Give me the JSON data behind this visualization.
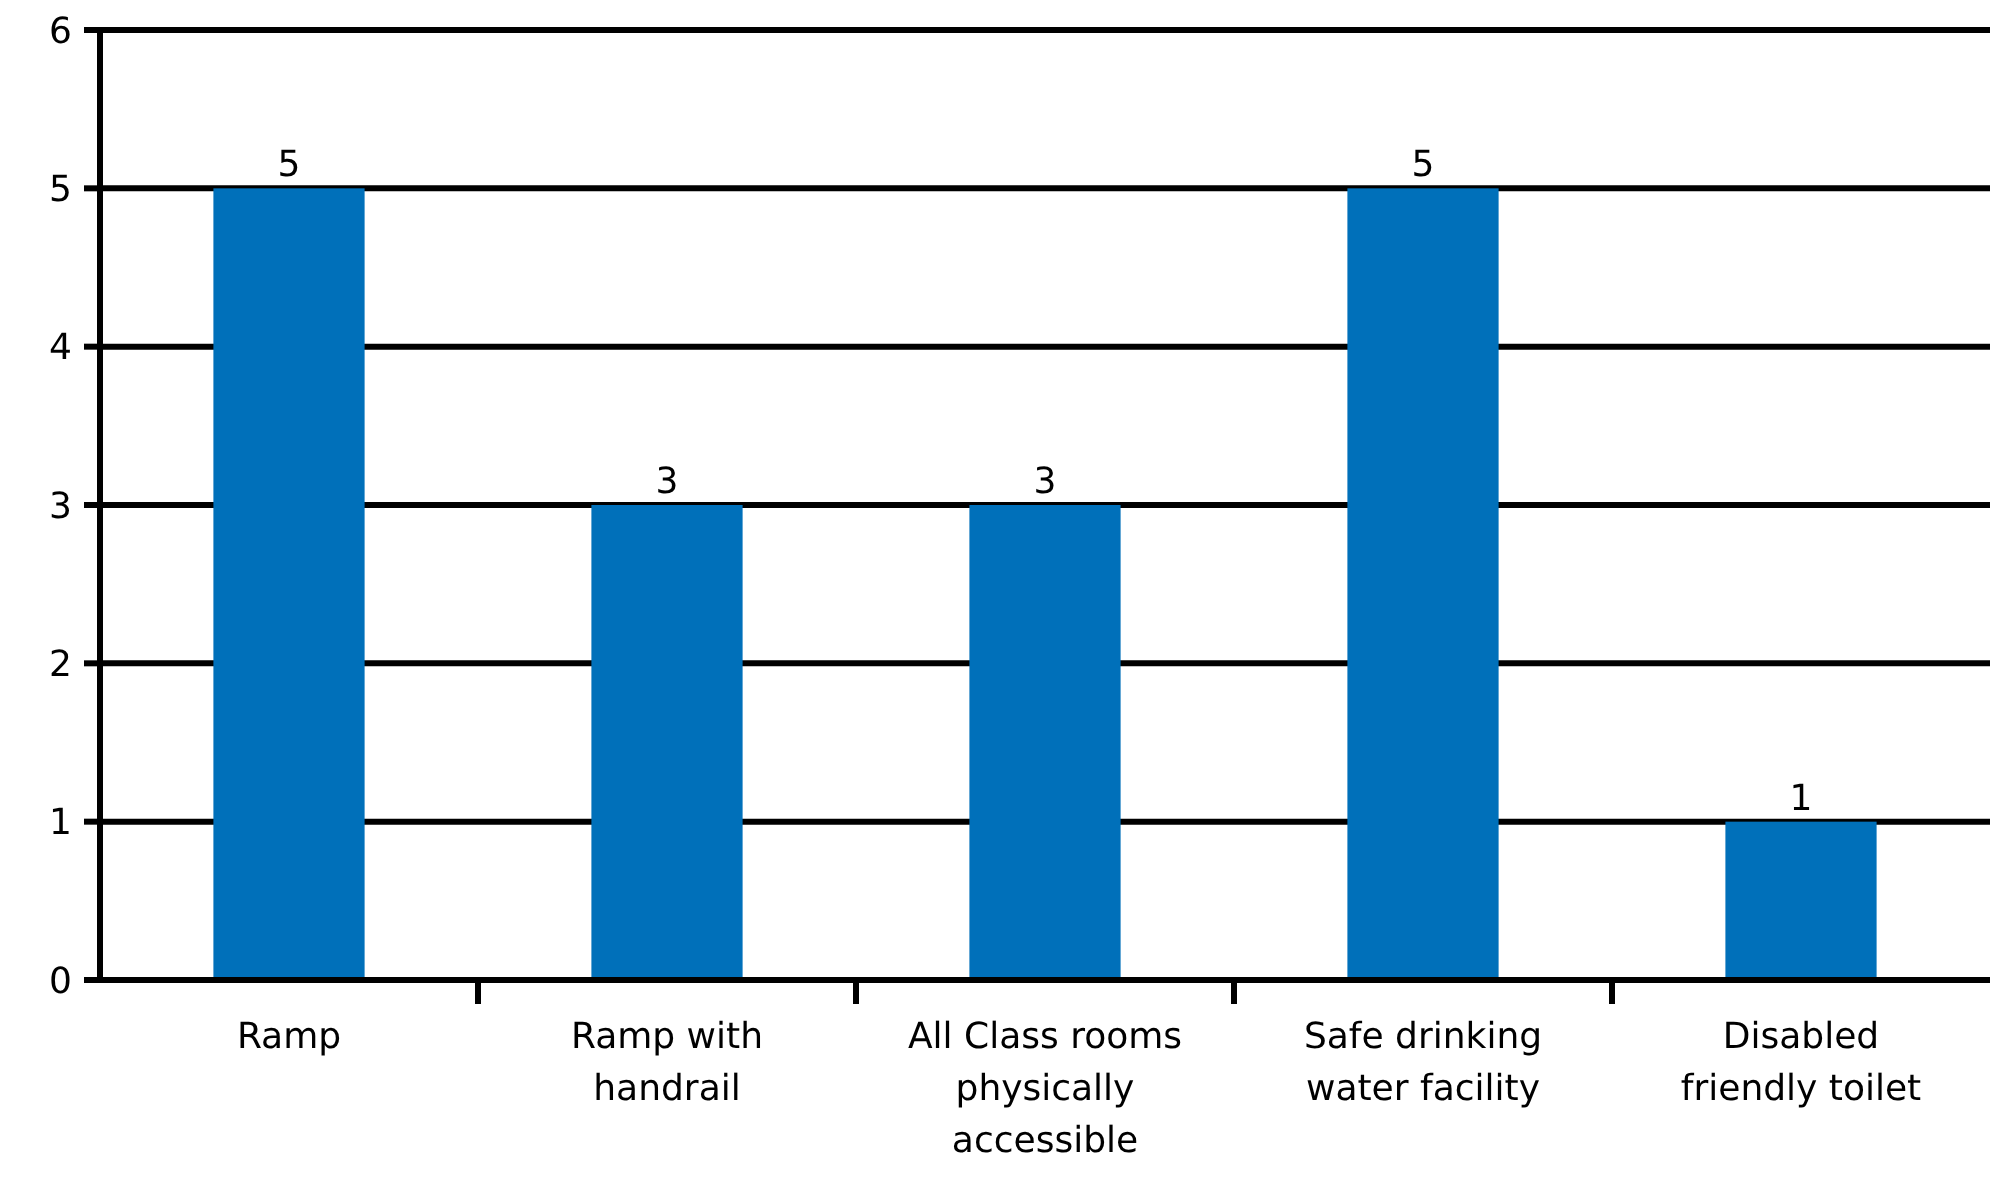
{
  "chart_data": {
    "type": "bar",
    "categories": [
      "Ramp",
      "Ramp with handrail",
      "All Class rooms physically accessible",
      "Safe drinking water facility",
      "Disabled friendly toilet"
    ],
    "values": [
      5,
      3,
      3,
      5,
      1
    ],
    "color": "#0070ba",
    "ylim": [
      0,
      6
    ],
    "yticks": [
      0,
      1,
      2,
      3,
      4,
      5,
      6
    ],
    "grid": "y",
    "data_labels": true
  }
}
